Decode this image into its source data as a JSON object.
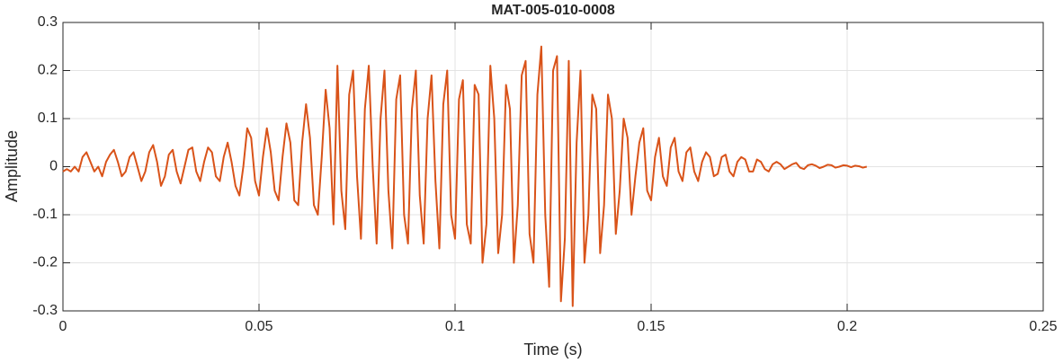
{
  "chart_data": {
    "type": "line",
    "title": "MAT-005-010-0008",
    "xlabel": "Time (s)",
    "ylabel": "Amplitude",
    "color": "#d95319",
    "grid": true,
    "xlim": [
      0,
      0.25
    ],
    "xticks": [
      0,
      0.05,
      0.1,
      0.15,
      0.2,
      0.25
    ],
    "ylim": [
      -0.3,
      0.3
    ],
    "yticks": [
      -0.3,
      -0.2,
      -0.1,
      0,
      0.1,
      0.2,
      0.3
    ],
    "x": [
      0,
      0.001,
      0.002,
      0.003,
      0.004,
      0.005,
      0.006,
      0.007,
      0.008,
      0.009,
      0.01,
      0.011,
      0.012,
      0.013,
      0.014,
      0.015,
      0.016,
      0.017,
      0.018,
      0.019,
      0.02,
      0.021,
      0.022,
      0.023,
      0.024,
      0.025,
      0.026,
      0.027,
      0.028,
      0.029,
      0.03,
      0.031,
      0.032,
      0.033,
      0.034,
      0.035,
      0.036,
      0.037,
      0.038,
      0.039,
      0.04,
      0.041,
      0.042,
      0.043,
      0.044,
      0.045,
      0.046,
      0.047,
      0.048,
      0.049,
      0.05,
      0.051,
      0.052,
      0.053,
      0.054,
      0.055,
      0.056,
      0.057,
      0.058,
      0.059,
      0.06,
      0.061,
      0.062,
      0.063,
      0.064,
      0.065,
      0.066,
      0.067,
      0.068,
      0.069,
      0.07,
      0.071,
      0.072,
      0.073,
      0.074,
      0.075,
      0.076,
      0.077,
      0.078,
      0.079,
      0.08,
      0.081,
      0.082,
      0.083,
      0.084,
      0.085,
      0.086,
      0.087,
      0.088,
      0.089,
      0.09,
      0.091,
      0.092,
      0.093,
      0.094,
      0.095,
      0.096,
      0.097,
      0.098,
      0.099,
      0.1,
      0.101,
      0.102,
      0.103,
      0.104,
      0.105,
      0.106,
      0.107,
      0.108,
      0.109,
      0.11,
      0.111,
      0.112,
      0.113,
      0.114,
      0.115,
      0.116,
      0.117,
      0.118,
      0.119,
      0.12,
      0.121,
      0.122,
      0.123,
      0.124,
      0.125,
      0.126,
      0.127,
      0.128,
      0.129,
      0.13,
      0.131,
      0.132,
      0.133,
      0.134,
      0.135,
      0.136,
      0.137,
      0.138,
      0.139,
      0.14,
      0.141,
      0.142,
      0.143,
      0.144,
      0.145,
      0.146,
      0.147,
      0.148,
      0.149,
      0.15,
      0.151,
      0.152,
      0.153,
      0.154,
      0.155,
      0.156,
      0.157,
      0.158,
      0.159,
      0.16,
      0.161,
      0.162,
      0.163,
      0.164,
      0.165,
      0.166,
      0.167,
      0.168,
      0.169,
      0.17,
      0.171,
      0.172,
      0.173,
      0.174,
      0.175,
      0.176,
      0.177,
      0.178,
      0.179,
      0.18,
      0.181,
      0.182,
      0.183,
      0.184,
      0.185,
      0.186,
      0.187,
      0.188,
      0.189,
      0.19,
      0.191,
      0.192,
      0.193,
      0.194,
      0.195,
      0.196,
      0.197,
      0.198,
      0.199,
      0.2,
      0.201,
      0.202,
      0.203,
      0.204,
      0.205
    ],
    "values": [
      -0.01,
      -0.005,
      -0.01,
      0.0,
      -0.01,
      0.02,
      0.03,
      0.01,
      -0.01,
      0.0,
      -0.02,
      0.01,
      0.025,
      0.035,
      0.01,
      -0.02,
      -0.01,
      0.02,
      0.03,
      0.0,
      -0.03,
      -0.01,
      0.03,
      0.045,
      0.01,
      -0.04,
      -0.02,
      0.025,
      0.035,
      -0.01,
      -0.035,
      0.0,
      0.035,
      0.04,
      -0.01,
      -0.03,
      0.01,
      0.04,
      0.03,
      -0.02,
      -0.03,
      0.02,
      0.05,
      0.01,
      -0.04,
      -0.06,
      0.0,
      0.08,
      0.06,
      -0.03,
      -0.06,
      0.02,
      0.08,
      0.03,
      -0.05,
      -0.07,
      0.02,
      0.09,
      0.05,
      -0.07,
      -0.08,
      0.05,
      0.13,
      0.06,
      -0.08,
      -0.1,
      0.02,
      0.16,
      0.08,
      -0.12,
      0.21,
      -0.05,
      -0.13,
      0.15,
      0.2,
      -0.02,
      -0.15,
      0.12,
      0.21,
      0.0,
      -0.16,
      0.1,
      0.2,
      -0.05,
      -0.17,
      0.14,
      0.19,
      -0.1,
      -0.16,
      0.12,
      0.2,
      -0.06,
      -0.16,
      0.1,
      0.19,
      -0.03,
      -0.17,
      0.13,
      0.2,
      -0.1,
      -0.15,
      0.14,
      0.18,
      -0.12,
      -0.16,
      0.17,
      0.15,
      -0.2,
      -0.12,
      0.21,
      0.1,
      -0.18,
      -0.1,
      0.17,
      0.12,
      -0.2,
      -0.08,
      0.19,
      0.22,
      -0.14,
      -0.2,
      0.15,
      0.25,
      -0.1,
      -0.25,
      0.2,
      0.23,
      -0.28,
      -0.15,
      0.22,
      -0.29,
      0.05,
      0.2,
      -0.2,
      -0.1,
      0.15,
      0.12,
      -0.18,
      -0.08,
      0.15,
      0.1,
      -0.14,
      -0.05,
      0.1,
      0.06,
      -0.1,
      -0.02,
      0.05,
      0.08,
      -0.05,
      -0.07,
      0.02,
      0.06,
      -0.02,
      -0.04,
      0.04,
      0.06,
      -0.01,
      -0.03,
      0.03,
      0.04,
      -0.01,
      -0.03,
      0.01,
      0.03,
      0.02,
      -0.02,
      -0.015,
      0.02,
      0.025,
      -0.01,
      -0.02,
      0.01,
      0.02,
      0.015,
      -0.01,
      -0.01,
      0.015,
      0.01,
      -0.005,
      -0.01,
      0.005,
      0.01,
      0.005,
      -0.005,
      0.0,
      0.005,
      0.008,
      -0.002,
      -0.005,
      0.003,
      0.005,
      0.002,
      -0.003,
      0.0,
      0.004,
      0.003,
      -0.002,
      0.0,
      0.003,
      0.002,
      -0.001,
      0.002,
      0.001,
      -0.002,
      0.0
    ]
  }
}
